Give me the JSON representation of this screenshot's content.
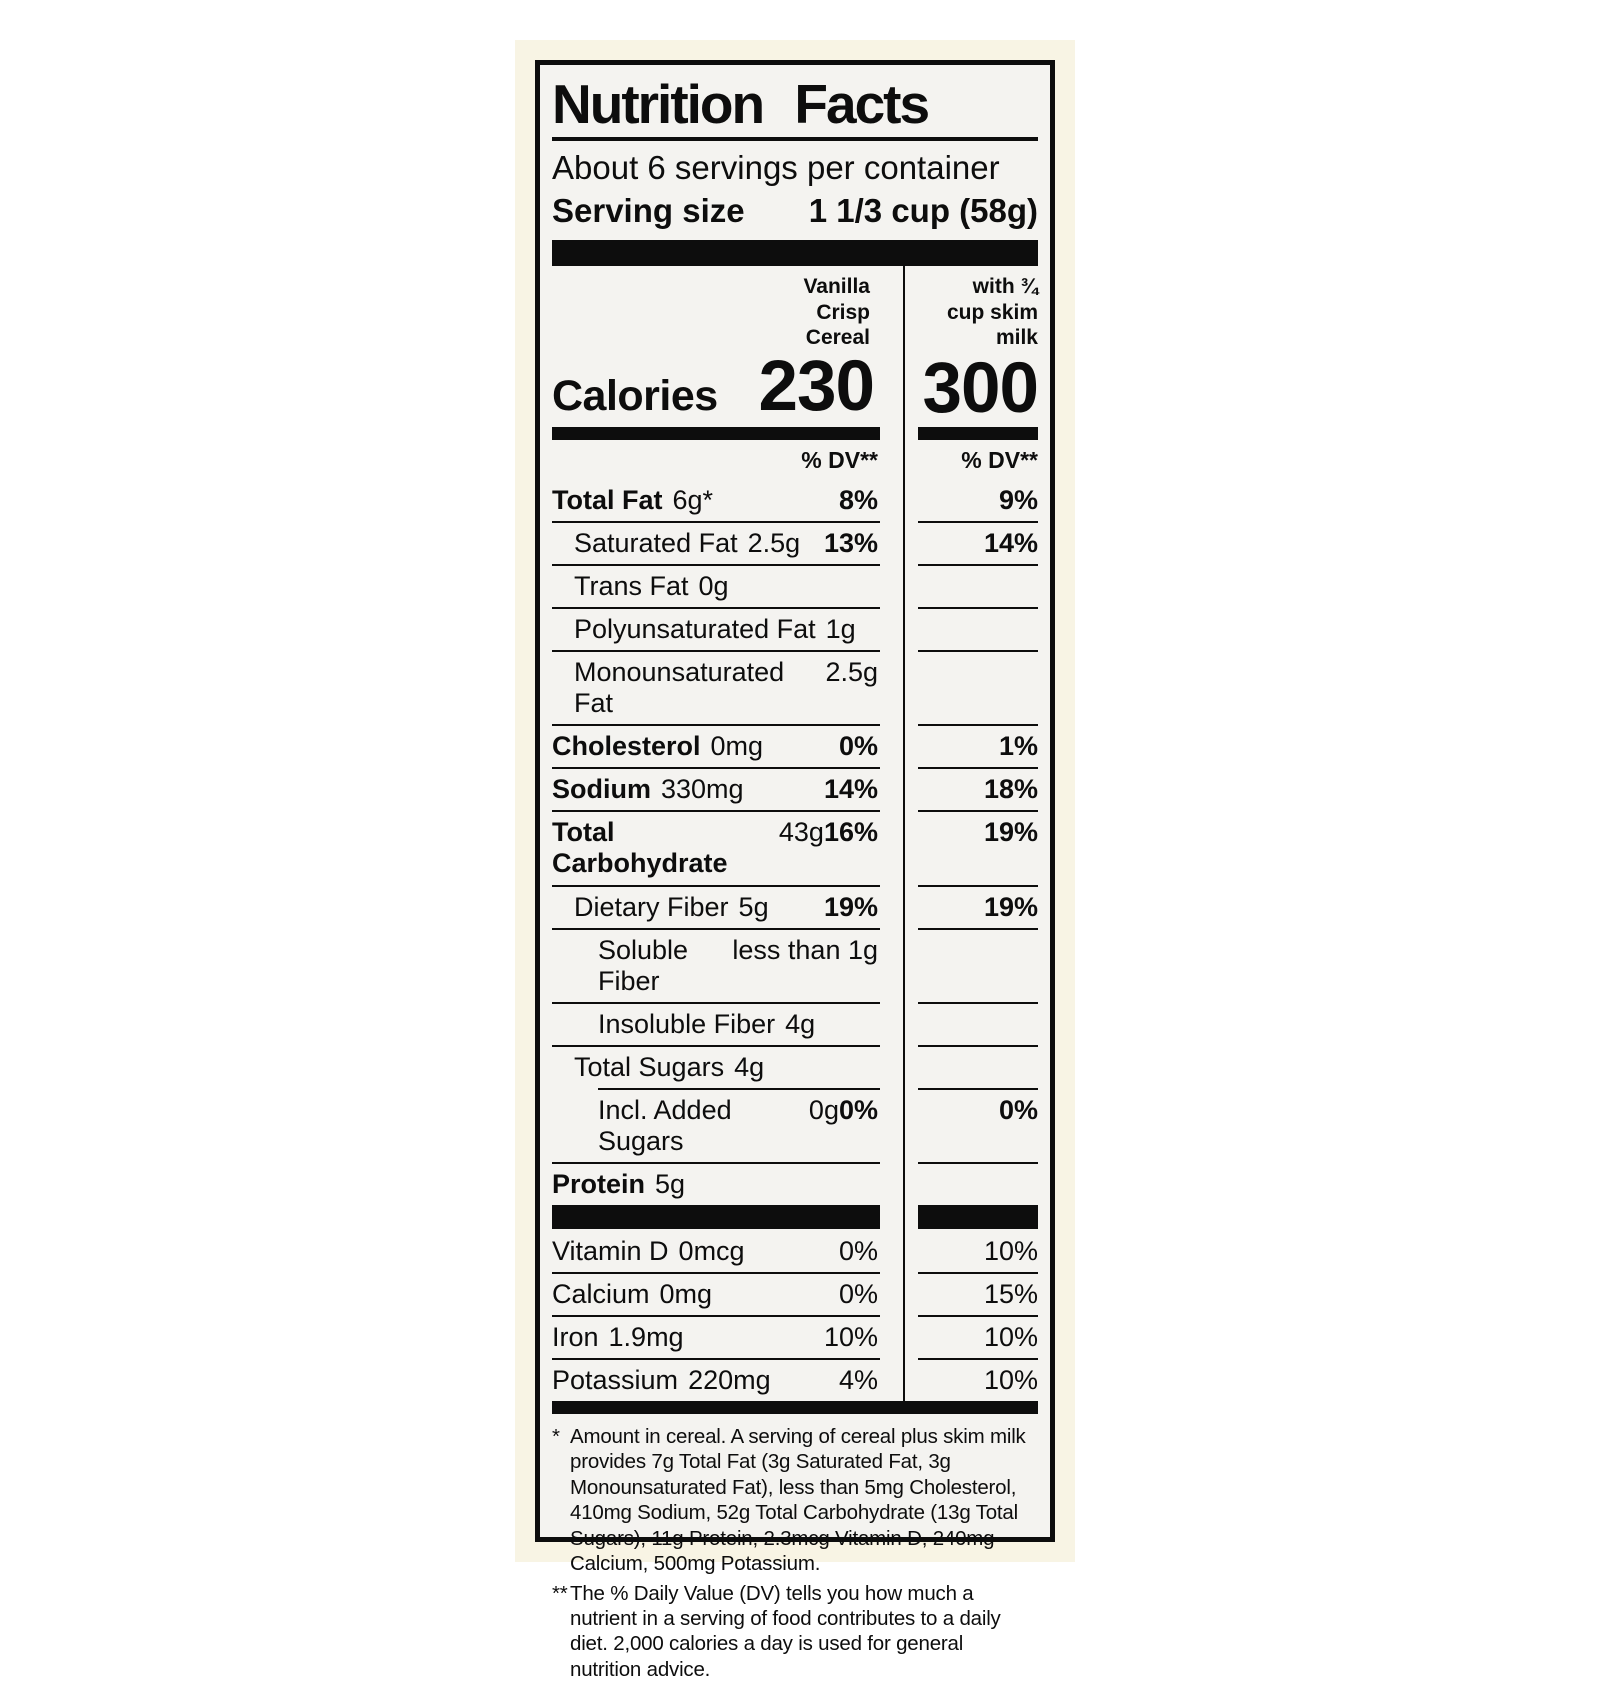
{
  "label": {
    "title": "Nutrition Facts",
    "servings_per_container": "About 6 servings per container",
    "serving_size_label": "Serving size",
    "serving_size_value": "1 1/3 cup (58g)",
    "calories_label": "Calories",
    "dv_header": "% DV**",
    "columns": [
      {
        "header": "Vanilla\nCrisp\nCereal",
        "calories": "230"
      },
      {
        "header": "with ¾\ncup skim\nmilk",
        "calories": "300"
      }
    ],
    "rows": [
      {
        "name": "Total Fat",
        "amount": "6g*",
        "bold": true,
        "indent": 0,
        "cereal_dv": "8%",
        "milk_dv": "9%"
      },
      {
        "name": "Saturated Fat",
        "amount": "2.5g",
        "bold": false,
        "indent": 1,
        "cereal_dv": "13%",
        "milk_dv": "14%"
      },
      {
        "name": "Trans Fat",
        "amount": "0g",
        "bold": false,
        "indent": 1,
        "cereal_dv": "",
        "milk_dv": ""
      },
      {
        "name": "Polyunsaturated Fat",
        "amount": "1g",
        "bold": false,
        "indent": 1,
        "cereal_dv": "",
        "milk_dv": ""
      },
      {
        "name": "Monounsaturated Fat",
        "amount": "2.5g",
        "bold": false,
        "indent": 1,
        "cereal_dv": "",
        "milk_dv": ""
      },
      {
        "name": "Cholesterol",
        "amount": "0mg",
        "bold": true,
        "indent": 0,
        "cereal_dv": "0%",
        "milk_dv": "1%"
      },
      {
        "name": "Sodium",
        "amount": "330mg",
        "bold": true,
        "indent": 0,
        "cereal_dv": "14%",
        "milk_dv": "18%"
      },
      {
        "name": "Total Carbohydrate",
        "amount": "43g",
        "bold": true,
        "indent": 0,
        "cereal_dv": "16%",
        "milk_dv": "19%"
      },
      {
        "name": "Dietary Fiber",
        "amount": "5g",
        "bold": false,
        "indent": 1,
        "cereal_dv": "19%",
        "milk_dv": "19%"
      },
      {
        "name": "Soluble Fiber",
        "amount": "less than 1g",
        "bold": false,
        "indent": 2,
        "cereal_dv": "",
        "milk_dv": ""
      },
      {
        "name": "Insoluble Fiber",
        "amount": "4g",
        "bold": false,
        "indent": 2,
        "cereal_dv": "",
        "milk_dv": ""
      },
      {
        "name": "Total Sugars",
        "amount": "4g",
        "bold": false,
        "indent": 1,
        "cereal_dv": "",
        "milk_dv": ""
      },
      {
        "name": "Incl. Added Sugars",
        "amount": "0g",
        "bold": false,
        "indent": 2,
        "cereal_dv": "0%",
        "milk_dv": "0%",
        "sep_indent": true
      },
      {
        "name": "Protein",
        "amount": "5g",
        "bold": true,
        "indent": 0,
        "cereal_dv": "",
        "milk_dv": ""
      }
    ],
    "vitamins": [
      {
        "name": "Vitamin D",
        "amount": "0mcg",
        "cereal_dv": "0%",
        "milk_dv": "10%"
      },
      {
        "name": "Calcium",
        "amount": "0mg",
        "cereal_dv": "0%",
        "milk_dv": "15%"
      },
      {
        "name": "Iron",
        "amount": "1.9mg",
        "cereal_dv": "10%",
        "milk_dv": "10%"
      },
      {
        "name": "Potassium",
        "amount": "220mg",
        "cereal_dv": "4%",
        "milk_dv": "10%"
      }
    ],
    "footnotes": [
      {
        "marker": "*",
        "text": "Amount in cereal. A serving of cereal plus skim milk provides 7g Total Fat (3g Saturated Fat, 3g Monounsaturated Fat), less than 5mg Cholesterol, 410mg Sodium, 52g Total Carbohydrate (13g Total Sugars), 11g Protein, 2.3mcg Vitamin D, 240mg Calcium, 500mg Potassium."
      },
      {
        "marker": "**",
        "text": "The % Daily Value (DV) tells you how much a nutrient in a serving of food contributes to a daily diet. 2,000 calories a day is used for general nutrition advice."
      }
    ]
  },
  "colors": {
    "ink": "#0d0d0d",
    "label_bg": "#f4f3f0",
    "halo": "#f8f4e4",
    "page_bg": "#ffffff"
  }
}
